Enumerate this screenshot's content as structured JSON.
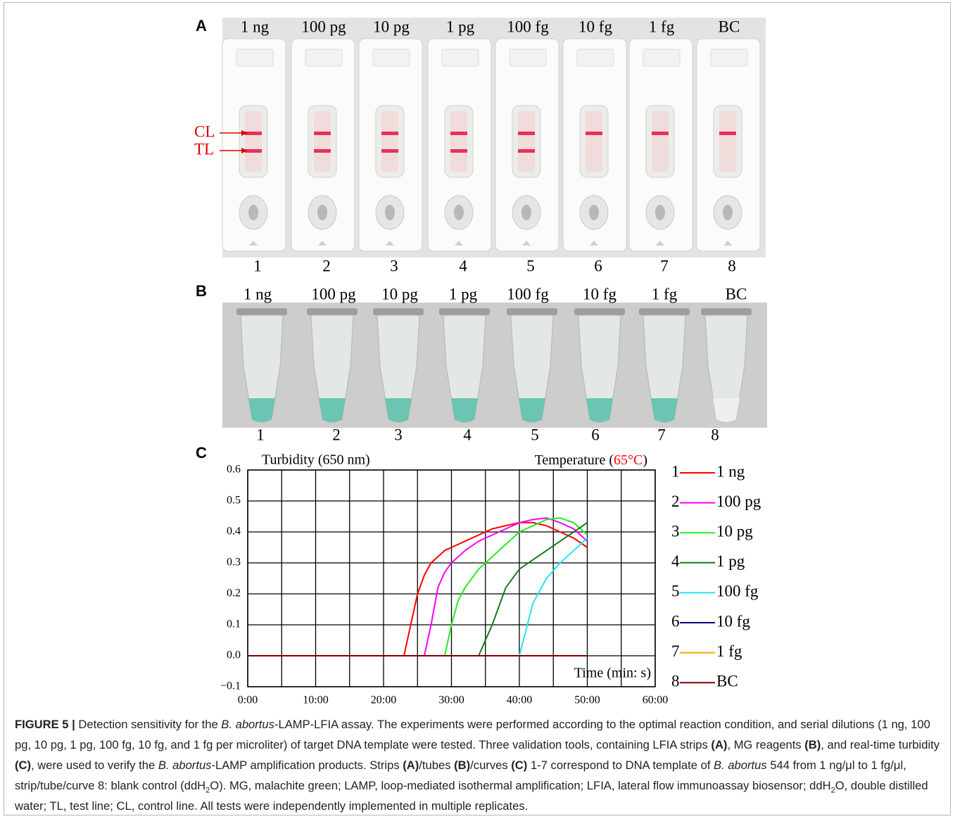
{
  "panel_a": {
    "letter": "A",
    "labels": [
      "1 ng",
      "100 pg",
      "10 pg",
      "1 pg",
      "100 fg",
      "10 fg",
      "1 fg",
      "BC"
    ],
    "numbers": [
      "1",
      "2",
      "3",
      "4",
      "5",
      "6",
      "7",
      "8"
    ],
    "line_labels": [
      "CL",
      "TL"
    ]
  },
  "panel_b": {
    "letter": "B",
    "labels": [
      "1 ng",
      "100 pg",
      "10 pg",
      "1 pg",
      "100 fg",
      "10 fg",
      "1 fg",
      "BC"
    ],
    "numbers": [
      "1",
      "2",
      "3",
      "4",
      "5",
      "6",
      "7",
      "8"
    ]
  },
  "panel_c": {
    "letter": "C"
  },
  "chart_data": {
    "type": "line",
    "y_label": "Turbidity (650 nm)",
    "annotation": [
      "Temperature (",
      "65°C",
      ")"
    ],
    "x_label": "Time (min: s)",
    "x": [
      0,
      20,
      22,
      23,
      24,
      25,
      26,
      27,
      28,
      29,
      30,
      31,
      32,
      34,
      36,
      38,
      40,
      42,
      44,
      46,
      48,
      50
    ],
    "xlim": [
      0,
      60
    ],
    "xticks": [
      {
        "value": 0,
        "label": "0:00"
      },
      {
        "value": 10,
        "label": "10:00"
      },
      {
        "value": 20,
        "label": "20:00"
      },
      {
        "value": 30,
        "label": "30:00"
      },
      {
        "value": 40,
        "label": "40:00"
      },
      {
        "value": 50,
        "label": "50:00"
      },
      {
        "value": 60,
        "label": "60:00"
      }
    ],
    "ylim": [
      -0.1,
      0.6
    ],
    "yticks": [
      {
        "value": -0.1,
        "label": "−0.1"
      },
      {
        "value": 0,
        "label": "0.0"
      },
      0.1,
      0.2,
      0.3,
      0.4,
      0.5,
      0.6
    ],
    "grid": true,
    "series": [
      {
        "number": "1",
        "name": "1 ng",
        "color": "#ff0000",
        "values": [
          0,
          0,
          0,
          0,
          0.1,
          0.2,
          0.26,
          0.3,
          0.32,
          0.34,
          0.35,
          0.36,
          0.37,
          0.39,
          0.41,
          0.42,
          0.43,
          0.43,
          0.42,
          0.4,
          0.38,
          0.35
        ]
      },
      {
        "number": "2",
        "name": "100 pg",
        "color": "#ff00ff",
        "values": [
          0,
          0,
          0,
          0,
          0,
          0,
          0,
          0.1,
          0.22,
          0.27,
          0.3,
          0.32,
          0.34,
          0.37,
          0.39,
          0.41,
          0.43,
          0.44,
          0.445,
          0.43,
          0.41,
          0.37
        ]
      },
      {
        "number": "3",
        "name": "10 pg",
        "color": "#22ee22",
        "values": [
          0,
          0,
          0,
          0,
          0,
          0,
          0,
          0,
          0,
          0,
          0.1,
          0.18,
          0.22,
          0.28,
          0.32,
          0.36,
          0.4,
          0.42,
          0.44,
          0.445,
          0.43,
          0.39
        ]
      },
      {
        "number": "4",
        "name": "1 pg",
        "color": "#1a7a1a",
        "values": [
          0,
          0,
          0,
          0,
          0,
          0,
          0,
          0,
          0,
          0,
          0,
          0,
          0,
          0,
          0.1,
          0.22,
          0.28,
          0.31,
          0.34,
          0.37,
          0.4,
          0.43
        ]
      },
      {
        "number": "5",
        "name": "100 fg",
        "color": "#22e6f0",
        "values": [
          0,
          0,
          0,
          0,
          0,
          0,
          0,
          0,
          0,
          0,
          0,
          0,
          0,
          0,
          0,
          0,
          0,
          0.17,
          0.25,
          0.3,
          0.34,
          0.38
        ]
      },
      {
        "number": "6",
        "name": "10 fg",
        "color": "#000080",
        "values": [
          0,
          0,
          0,
          0,
          0,
          0,
          0,
          0,
          0,
          0,
          0,
          0,
          0,
          0,
          0,
          0,
          0,
          0,
          0,
          0,
          0,
          0
        ]
      },
      {
        "number": "7",
        "name": "1 fg",
        "color": "#ffa500",
        "values": [
          0,
          0,
          0,
          0,
          0,
          0,
          0,
          0,
          0,
          0,
          0,
          0,
          0,
          0,
          0,
          0,
          0,
          0,
          0,
          0,
          0,
          0
        ]
      },
      {
        "number": "8",
        "name": "BC",
        "color": "#800000",
        "values": [
          0,
          0,
          0,
          0,
          0,
          0,
          0,
          0,
          0,
          0,
          0,
          0,
          0,
          0,
          0,
          0,
          0,
          0,
          0,
          0,
          0,
          0
        ]
      }
    ]
  },
  "caption": [
    {
      "text": "FIGURE 5 |",
      "style": "bold"
    },
    {
      "text": " Detection sensitivity for the ",
      "style": "normal"
    },
    {
      "text": "B. abortus",
      "style": "italic"
    },
    {
      "text": "-LAMP-LFIA assay. The experiments were performed according to the optimal reaction condition, and serial dilutions (1 ng, 100 pg, 10 pg, 1 pg, 100 fg, 10 fg, and 1 fg per microliter) of target DNA template were tested. Three validation tools, containing LFIA strips ",
      "style": "normal"
    },
    {
      "text": "(A)",
      "style": "bold"
    },
    {
      "text": ", MG reagents ",
      "style": "normal"
    },
    {
      "text": "(B)",
      "style": "bold"
    },
    {
      "text": ", and real-time turbidity ",
      "style": "normal"
    },
    {
      "text": "(C)",
      "style": "bold"
    },
    {
      "text": ", were used to verify the ",
      "style": "normal"
    },
    {
      "text": "B. abortus",
      "style": "italic"
    },
    {
      "text": "-LAMP amplification products. Strips ",
      "style": "normal"
    },
    {
      "text": "(A)",
      "style": "bold"
    },
    {
      "text": "/tubes ",
      "style": "normal"
    },
    {
      "text": "(B)",
      "style": "bold"
    },
    {
      "text": "/curves ",
      "style": "normal"
    },
    {
      "text": "(C)",
      "style": "bold"
    },
    {
      "text": " 1-7 correspond to DNA template of ",
      "style": "normal"
    },
    {
      "text": "B. abortus",
      "style": "italic"
    },
    {
      "text": " 544 from 1 ng/μl to 1 fg/μl, strip/tube/curve 8: blank control (ddH",
      "style": "normal"
    },
    {
      "text": "2",
      "style": "sub"
    },
    {
      "text": "O). MG, malachite green; LAMP, loop-mediated isothermal amplification; LFIA, lateral flow immunoassay biosensor; ddH",
      "style": "normal"
    },
    {
      "text": "2",
      "style": "sub"
    },
    {
      "text": "O, double distilled water; TL, test line; CL, control line. All tests were independently implemented in multiple replicates.",
      "style": "normal"
    }
  ]
}
